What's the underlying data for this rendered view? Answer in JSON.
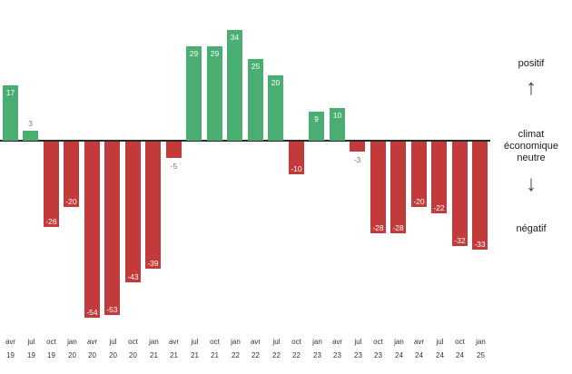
{
  "chart_data": {
    "type": "bar",
    "title": "",
    "categories": [
      "avr 19",
      "jul 19",
      "oct 19",
      "jan 20",
      "avr 20",
      "jul 20",
      "oct 20",
      "jan 21",
      "avr 21",
      "jul 21",
      "oct 21",
      "jan 22",
      "avr 22",
      "jul 22",
      "oct 22",
      "jan 23",
      "avr 23",
      "jul 23",
      "oct 23",
      "jan 24",
      "avr 24",
      "jul 24",
      "oct 24",
      "jan 25"
    ],
    "values": [
      17,
      3,
      -26,
      -20,
      -54,
      -53,
      -43,
      -39,
      -5,
      29,
      29,
      34,
      25,
      20,
      -10,
      9,
      10,
      -3,
      -28,
      -28,
      -20,
      -22,
      -32,
      -33
    ],
    "ylim": [
      -60,
      40
    ],
    "grid": false,
    "legend": false,
    "colors": {
      "positive": "#4aad72",
      "negative": "#c33a3a",
      "zero_line": "#2b2b2b"
    },
    "annotations": {
      "positive_label": "positif",
      "neutral_label_line1": "climat économique",
      "neutral_label_line2": "neutre",
      "negative_label": "négatif",
      "up_arrow": "↑",
      "down_arrow": "↓"
    }
  }
}
